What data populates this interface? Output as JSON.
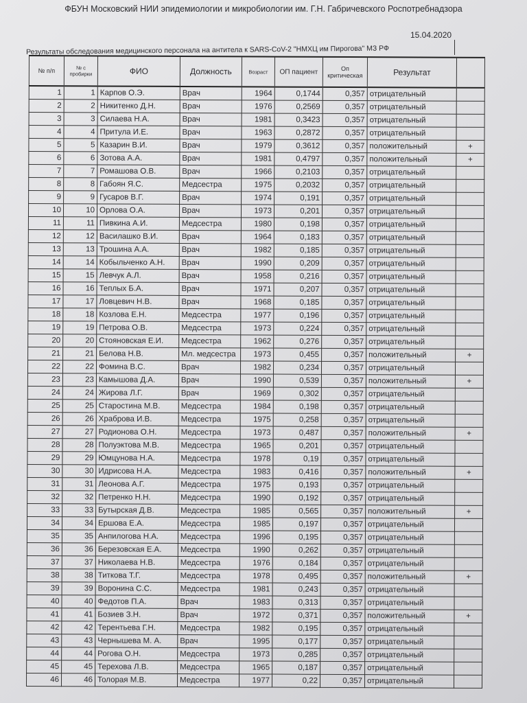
{
  "document": {
    "organization": "ФБУН Московский НИИ эпидемиологии и микробиологии им. Г.Н. Габричевского Роспотребнадзора",
    "date": "15.04.2020",
    "caption": "Результаты обследования медицинского персонала на антитела к SARS-CoV-2 \"НМХЦ им  Пирогова\" МЗ РФ"
  },
  "table": {
    "headers": [
      "№ п/п",
      "№ с пробирки",
      "ФИО",
      "Должность",
      "Возраст",
      "ОП пациент",
      "Оп критическая",
      "Результат",
      ""
    ],
    "rows": [
      [
        "1",
        "1",
        "Карпов О.Э.",
        "Врач",
        "1964",
        "0,1744",
        "0,357",
        "отрицательный",
        ""
      ],
      [
        "2",
        "2",
        "Никитенко Д.Н.",
        "Врач",
        "1976",
        "0,2569",
        "0,357",
        "отрицательный",
        ""
      ],
      [
        "3",
        "3",
        "Силаева Н.А.",
        "Врач",
        "1981",
        "0,3423",
        "0,357",
        "отрицательный",
        ""
      ],
      [
        "4",
        "4",
        "Притула И.Е.",
        "Врач",
        "1963",
        "0,2872",
        "0,357",
        "отрицательный",
        ""
      ],
      [
        "5",
        "5",
        "Казарин В.И.",
        "Врач",
        "1979",
        "0,3612",
        "0,357",
        "положительный",
        "+"
      ],
      [
        "6",
        "6",
        "Зотова А.А.",
        "Врач",
        "1981",
        "0,4797",
        "0,357",
        "положительный",
        "+"
      ],
      [
        "7",
        "7",
        "Ромашова О.В.",
        "Врач",
        "1966",
        "0,2103",
        "0,357",
        "отрицательный",
        ""
      ],
      [
        "8",
        "8",
        "Габоян Я.С.",
        "Медсестра",
        "1975",
        "0,2032",
        "0,357",
        "отрицательный",
        ""
      ],
      [
        "9",
        "9",
        "Гусаров В.Г.",
        "Врач",
        "1974",
        "0,191",
        "0,357",
        "отрицательный",
        ""
      ],
      [
        "10",
        "10",
        "Орлова О.А.",
        "Врач",
        "1973",
        "0,201",
        "0,357",
        "отрицательный",
        ""
      ],
      [
        "11",
        "11",
        "Пивкина А.И.",
        "Медсестра",
        "1980",
        "0,198",
        "0,357",
        "отрицательный",
        ""
      ],
      [
        "12",
        "12",
        "Василашко В.И.",
        "Врач",
        "1964",
        "0,183",
        "0,357",
        "отрицательный",
        ""
      ],
      [
        "13",
        "13",
        "Трошина А.А.",
        "Врач",
        "1982",
        "0,185",
        "0,357",
        "отрицательный",
        ""
      ],
      [
        "14",
        "14",
        "Кобыльченко А.Н.",
        "Врач",
        "1990",
        "0,209",
        "0,357",
        "отрицательный",
        ""
      ],
      [
        "15",
        "15",
        "Левчук А.Л.",
        "Врач",
        "1958",
        "0,216",
        "0,357",
        "отрицательный",
        ""
      ],
      [
        "16",
        "16",
        "Теплых Б.А.",
        "Врач",
        "1971",
        "0,207",
        "0,357",
        "отрицательный",
        ""
      ],
      [
        "17",
        "17",
        "Ловцевич Н.В.",
        "Врач",
        "1968",
        "0,185",
        "0,357",
        "отрицательный",
        ""
      ],
      [
        "18",
        "18",
        "Козлова Е.Н.",
        "Медсестра",
        "1977",
        "0,196",
        "0,357",
        "отрицательный",
        ""
      ],
      [
        "19",
        "19",
        "Петрова О.В.",
        "Медсестра",
        "1973",
        "0,224",
        "0,357",
        "отрицательный",
        ""
      ],
      [
        "20",
        "20",
        "Стояновская Е.И.",
        "Медсестра",
        "1962",
        "0,276",
        "0,357",
        "отрицательный",
        ""
      ],
      [
        "21",
        "21",
        "Белова Н.В.",
        "Мл. медсестра",
        "1973",
        "0,455",
        "0,357",
        "положительный",
        "+"
      ],
      [
        "22",
        "22",
        "Фомина В.С.",
        "Врач",
        "1982",
        "0,234",
        "0,357",
        "отрицательный",
        ""
      ],
      [
        "23",
        "23",
        "Камышова Д.А.",
        "Врач",
        "1990",
        "0,539",
        "0,357",
        "положительный",
        "+"
      ],
      [
        "24",
        "24",
        "Жирова Л.Г.",
        "Врач",
        "1969",
        "0,302",
        "0,357",
        "отрицательный",
        ""
      ],
      [
        "25",
        "25",
        "Старостина М.В.",
        "Медсестра",
        "1984",
        "0,198",
        "0,357",
        "отрицательный",
        ""
      ],
      [
        "26",
        "26",
        "Храброва И.В.",
        "Медсестра",
        "1975",
        "0,258",
        "0,357",
        "отрицательный",
        ""
      ],
      [
        "27",
        "27",
        "Родионова О.Н.",
        "Медсестра",
        "1973",
        "0,487",
        "0,357",
        "положительный",
        "+"
      ],
      [
        "28",
        "28",
        "Полуэктова М.В.",
        "Медсестра",
        "1965",
        "0,201",
        "0,357",
        "отрицательный",
        ""
      ],
      [
        "29",
        "29",
        "Юмцунова Н.А.",
        "Медсестра",
        "1978",
        "0,19",
        "0,357",
        "отрицательный",
        ""
      ],
      [
        "30",
        "30",
        "Идрисова Н.А.",
        "Медсестра",
        "1983",
        "0,416",
        "0,357",
        "положительный",
        "+"
      ],
      [
        "31",
        "31",
        "Леонова А.Г.",
        "Медсестра",
        "1975",
        "0,193",
        "0,357",
        "отрицательный",
        ""
      ],
      [
        "32",
        "32",
        "Петренко Н.Н.",
        "Медсестра",
        "1990",
        "0,192",
        "0,357",
        "отрицательный",
        ""
      ],
      [
        "33",
        "33",
        "Бутырская Д.В.",
        "Медсестра",
        "1985",
        "0,565",
        "0,357",
        "положительный",
        "+"
      ],
      [
        "34",
        "34",
        "Ершова Е.А.",
        "Медсестра",
        "1985",
        "0,197",
        "0,357",
        "отрицательный",
        ""
      ],
      [
        "35",
        "35",
        "Анпилогова Н.А.",
        "Медсестра",
        "1996",
        "0,195",
        "0,357",
        "отрицательный",
        ""
      ],
      [
        "36",
        "36",
        "Березовская Е.А.",
        "Медсестра",
        "1990",
        "0,262",
        "0,357",
        "отрицательный",
        ""
      ],
      [
        "37",
        "37",
        "Николаева Н.В.",
        "Медсестра",
        "1976",
        "0,184",
        "0,357",
        "отрицательный",
        ""
      ],
      [
        "38",
        "38",
        "Титкова Т.Г.",
        "Медсестра",
        "1978",
        "0,495",
        "0,357",
        "положительный",
        "+"
      ],
      [
        "39",
        "39",
        "Воронина С.С.",
        "Медсестра",
        "1981",
        "0,243",
        "0,357",
        "отрицательный",
        ""
      ],
      [
        "40",
        "40",
        "Федотов П.А.",
        "Врач",
        "1983",
        "0,313",
        "0,357",
        "отрицательный",
        ""
      ],
      [
        "41",
        "41",
        "Бозиев З.Н.",
        "Врач",
        "1972",
        "0,371",
        "0,357",
        "положительный",
        "+"
      ],
      [
        "42",
        "42",
        "Терентьева Г.Н.",
        "Медсестра",
        "1982",
        "0,195",
        "0,357",
        "отрицательный",
        ""
      ],
      [
        "43",
        "43",
        "Чернышева М. А.",
        "Врач",
        "1995",
        "0,177",
        "0,357",
        "отрицательный",
        ""
      ],
      [
        "44",
        "44",
        "Рогова О.Н.",
        "Медсестра",
        "1973",
        "0,285",
        "0,357",
        "отрицательный",
        ""
      ],
      [
        "45",
        "45",
        "Терехова Л.В.",
        "Медсестра",
        "1965",
        "0,187",
        "0,357",
        "отрицательный",
        ""
      ],
      [
        "46",
        "46",
        "Толорая М.В.",
        "Медсестра",
        "1977",
        "0,22",
        "0,357",
        "отрицательный",
        ""
      ]
    ]
  }
}
